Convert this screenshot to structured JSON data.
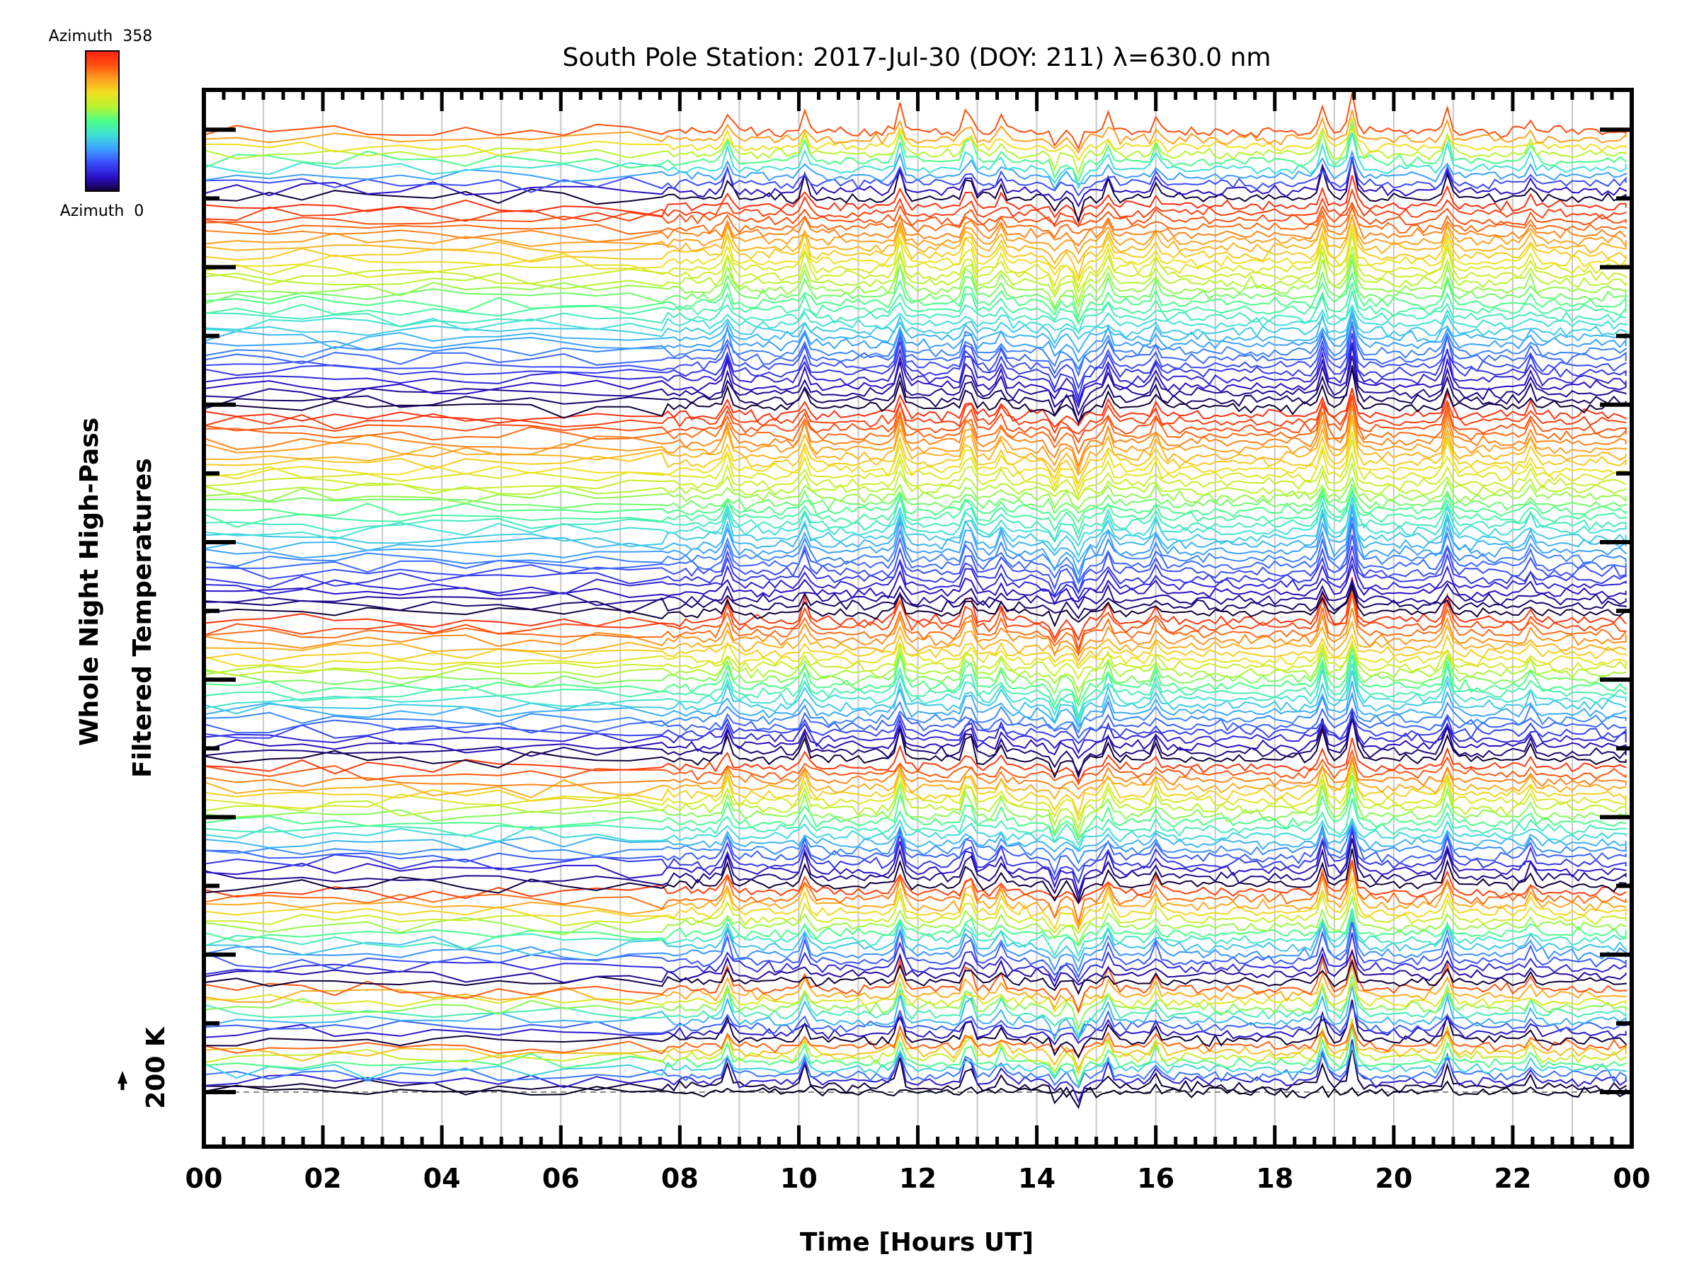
{
  "chart_data": {
    "type": "line",
    "title": "South Pole Station: 2017-Jul-30 (DOY: 211) λ=630.0 nm",
    "xlabel": "Time [Hours UT]",
    "ylabel_lines": [
      "Whole Night High-Pass",
      "Filtered Temperatures"
    ],
    "scale_bar_label": "200 K",
    "scale_bar_K": 200,
    "xlim": [
      0,
      24
    ],
    "ylim_K": [
      -215,
      3940
    ],
    "x_tick_labels": [
      "00",
      "02",
      "04",
      "06",
      "08",
      "10",
      "12",
      "14",
      "16",
      "18",
      "20",
      "22",
      "00"
    ],
    "x_major_step_hours": 2,
    "x_minor_step_minutes": 20,
    "x_grid_step_hours": 1,
    "y_major_step_K": 270,
    "grid": true,
    "baseline_dashed_K": 0,
    "colorbar": {
      "label_top": "Azimuth  358",
      "label_bottom": "Azimuth  0",
      "min_azimuth": 0,
      "max_azimuth": 358,
      "colors": [
        "#12003a",
        "#2a10c8",
        "#3a4cff",
        "#3aa0ff",
        "#40e0d8",
        "#4cff88",
        "#b8f430",
        "#f0e020",
        "#ffa020",
        "#ff5010",
        "#ff2010"
      ]
    },
    "sampling": [
      {
        "from_hour": 0,
        "to_hour": 7.8,
        "step_minutes": 33
      },
      {
        "from_hour": 7.8,
        "to_hour": 24,
        "step_minutes": 6
      }
    ],
    "noise_K": {
      "sparse": 22,
      "dense": 14
    },
    "rings": [
      {
        "zenith_ring": 0,
        "n_azimuths": 1,
        "offset_K": 0,
        "span_K": 0
      },
      {
        "zenith_ring": 1,
        "n_azimuths": 8,
        "offset_K": 20,
        "span_K": 185
      },
      {
        "zenith_ring": 2,
        "n_azimuths": 9,
        "offset_K": 205,
        "span_K": 225
      },
      {
        "zenith_ring": 3,
        "n_azimuths": 14,
        "offset_K": 434,
        "span_K": 380
      },
      {
        "zenith_ring": 4,
        "n_azimuths": 18,
        "offset_K": 815,
        "span_K": 490
      },
      {
        "zenith_ring": 5,
        "n_azimuths": 22,
        "offset_K": 1309,
        "span_K": 570
      },
      {
        "zenith_ring": 6,
        "n_azimuths": 30,
        "offset_K": 1882,
        "span_K": 805
      },
      {
        "zenith_ring": 7,
        "n_azimuths": 30,
        "offset_K": 2691,
        "span_K": 815
      },
      {
        "zenith_ring": 8,
        "n_azimuths": 10,
        "offset_K": 3511,
        "span_K": 290
      }
    ],
    "events": [
      {
        "hour": 8.8,
        "amplitude_K": 90
      },
      {
        "hour": 10.1,
        "amplitude_K": 80
      },
      {
        "hour": 11.7,
        "amplitude_K": 110
      },
      {
        "hour": 12.85,
        "amplitude_K": 110
      },
      {
        "hour": 13.4,
        "amplitude_K": 60
      },
      {
        "hour": 14.3,
        "amplitude_K": -60
      },
      {
        "hour": 14.7,
        "amplitude_K": -80
      },
      {
        "hour": 15.2,
        "amplitude_K": 70
      },
      {
        "hour": 16.0,
        "amplitude_K": 60
      },
      {
        "hour": 18.8,
        "amplitude_K": 110
      },
      {
        "hour": 19.3,
        "amplitude_K": 160
      },
      {
        "hour": 20.9,
        "amplitude_K": 100
      },
      {
        "hour": 22.3,
        "amplitude_K": 55
      }
    ]
  }
}
